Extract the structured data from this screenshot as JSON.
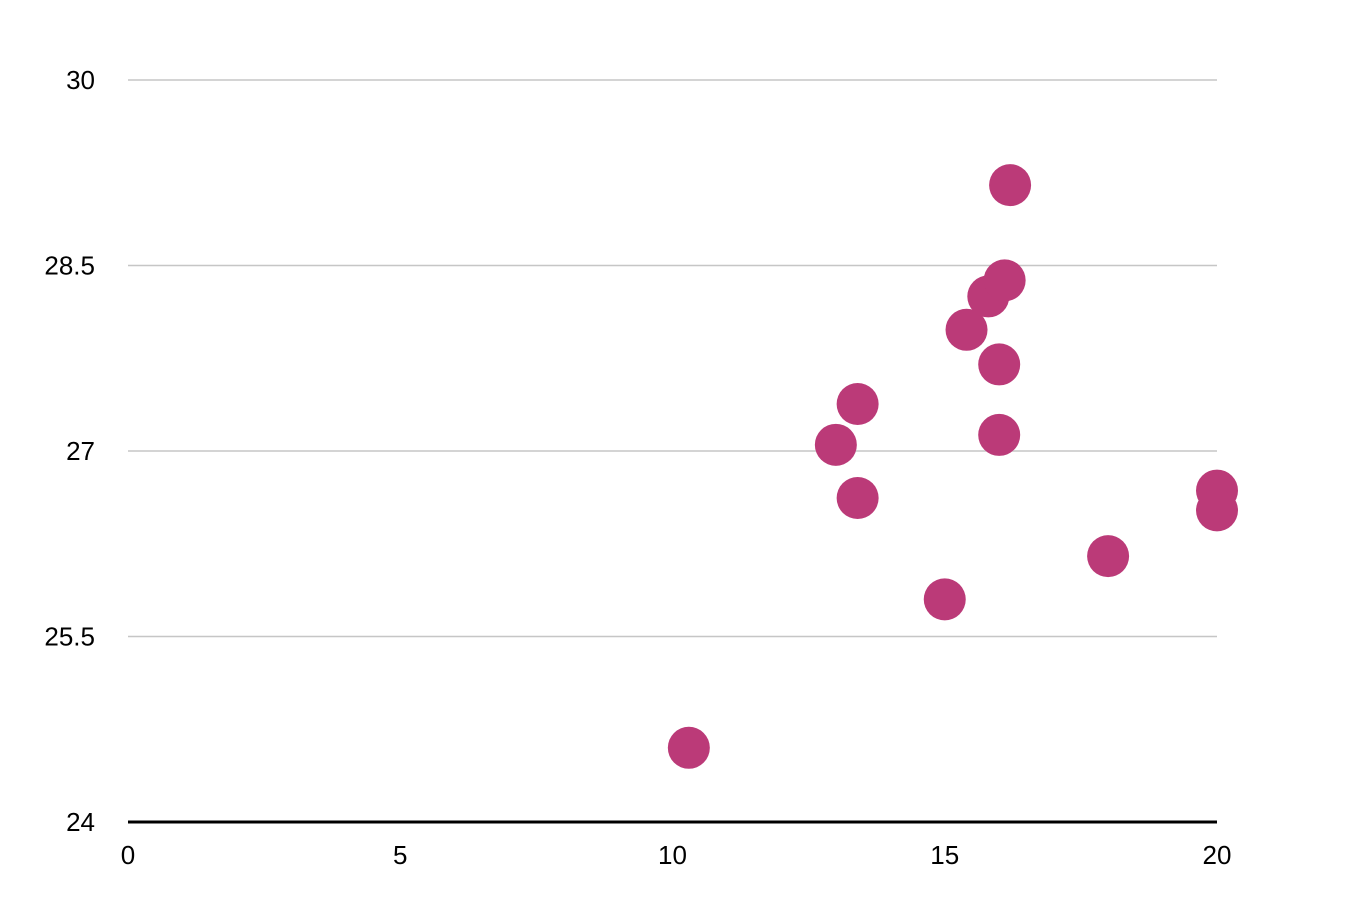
{
  "chart_data": {
    "type": "scatter",
    "title": "",
    "xlabel": "",
    "ylabel": "",
    "xlim": [
      0,
      20
    ],
    "ylim": [
      24,
      30
    ],
    "x_ticks": [
      0,
      5,
      10,
      15,
      20
    ],
    "y_ticks": [
      24,
      25.5,
      27,
      28.5,
      30
    ],
    "x_tick_labels": [
      "0",
      "5",
      "10",
      "15",
      "20"
    ],
    "y_tick_labels": [
      "24",
      "25.5",
      "27",
      "28.5",
      "30"
    ],
    "grid": "horizontal",
    "legend": "none",
    "series": [
      {
        "color": "#bb3a78",
        "points": [
          {
            "x": 10.3,
            "y": 24.6
          },
          {
            "x": 13.0,
            "y": 27.05
          },
          {
            "x": 13.4,
            "y": 27.38
          },
          {
            "x": 13.4,
            "y": 26.62
          },
          {
            "x": 15.0,
            "y": 25.8
          },
          {
            "x": 15.4,
            "y": 27.98
          },
          {
            "x": 15.8,
            "y": 28.25
          },
          {
            "x": 16.0,
            "y": 27.7
          },
          {
            "x": 16.0,
            "y": 27.13
          },
          {
            "x": 16.1,
            "y": 28.38
          },
          {
            "x": 16.2,
            "y": 29.15
          },
          {
            "x": 18.0,
            "y": 26.15
          },
          {
            "x": 20.0,
            "y": 26.68
          },
          {
            "x": 20.0,
            "y": 26.52
          }
        ]
      }
    ]
  }
}
